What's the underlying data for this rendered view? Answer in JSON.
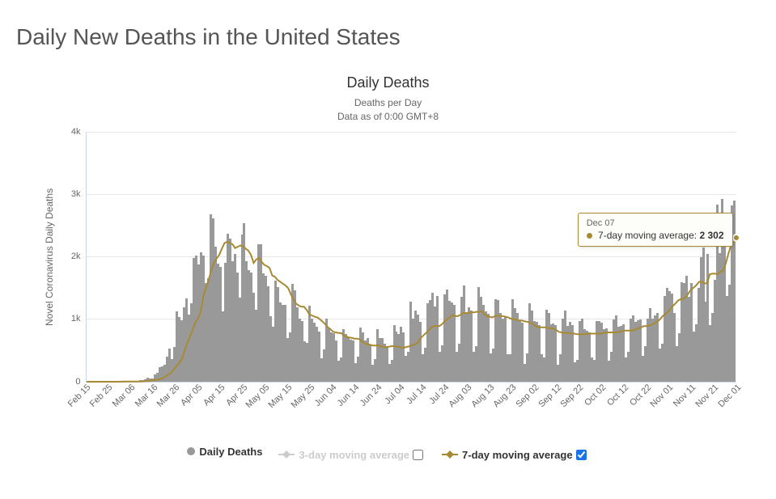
{
  "page": {
    "title": "Daily New Deaths in the United States"
  },
  "chart": {
    "type": "bar+line",
    "title": "Daily Deaths",
    "subtitle_line1": "Deaths per Day",
    "subtitle_line2": "Data as of 0:00 GMT+8",
    "y_axis": {
      "title": "Novel Coronavirus Daily Deaths",
      "min": 0,
      "max": 4000,
      "tick_step": 1000,
      "ticks": [
        {
          "v": 0,
          "label": "0"
        },
        {
          "v": 1000,
          "label": "1k"
        },
        {
          "v": 2000,
          "label": "2k"
        },
        {
          "v": 3000,
          "label": "3k"
        },
        {
          "v": 4000,
          "label": "4k"
        }
      ],
      "grid_color": "#e6e6e6"
    },
    "x_axis": {
      "tick_labels": [
        "Feb 15",
        "Feb 25",
        "Mar 06",
        "Mar 16",
        "Mar 26",
        "Apr 05",
        "Apr 15",
        "Apr 25",
        "May 05",
        "May 15",
        "May 25",
        "Jun 04",
        "Jun 14",
        "Jun 24",
        "Jul 04",
        "Jul 14",
        "Jul 24",
        "Aug 03",
        "Aug 13",
        "Aug 23",
        "Sep 02",
        "Sep 12",
        "Sep 22",
        "Oct 02",
        "Oct 12",
        "Oct 22",
        "Nov 01",
        "Nov 11",
        "Nov 21",
        "Dec 01"
      ]
    },
    "colors": {
      "bar": "#999999",
      "ma7": "#a88a33",
      "ma3": "#cccccc",
      "background": "#ffffff",
      "axis": "#ccd6eb",
      "grid": "#e6e6e6",
      "text": "#666666"
    },
    "line_width_ma7": 2,
    "bar_daily": [
      0,
      0,
      0,
      0,
      0,
      0,
      0,
      0,
      0,
      0,
      0,
      0,
      0,
      1,
      5,
      3,
      4,
      3,
      6,
      4,
      7,
      10,
      17,
      23,
      40,
      57,
      49,
      46,
      111,
      140,
      225,
      247,
      268,
      400,
      525,
      363,
      558,
      1118,
      1028,
      975,
      1180,
      1326,
      1066,
      1250,
      1970,
      2010,
      1870,
      2060,
      2010,
      1572,
      1650,
      2680,
      2610,
      2160,
      1890,
      1830,
      1120,
      1900,
      2360,
      2280,
      1930,
      2040,
      1740,
      1340,
      2350,
      2530,
      1930,
      1780,
      1740,
      1420,
      1150,
      2200,
      2200,
      1730,
      1690,
      1520,
      1040,
      870,
      1610,
      1510,
      1270,
      1220,
      1230,
      690,
      790,
      1560,
      1460,
      1190,
      1010,
      970,
      640,
      610,
      1210,
      1000,
      940,
      880,
      800,
      370,
      510,
      1000,
      860,
      790,
      770,
      650,
      330,
      380,
      830,
      760,
      710,
      670,
      650,
      290,
      390,
      860,
      790,
      660,
      700,
      580,
      270,
      360,
      830,
      700,
      690,
      600,
      560,
      280,
      350,
      900,
      800,
      760,
      870,
      790,
      410,
      480,
      1280,
      1000,
      1140,
      1070,
      950,
      430,
      540,
      1250,
      1300,
      1420,
      1200,
      1370,
      480,
      580,
      1390,
      1470,
      1290,
      1260,
      1220,
      480,
      600,
      1360,
      1530,
      1080,
      1180,
      1140,
      480,
      560,
      1510,
      1350,
      1220,
      1120,
      1080,
      450,
      530,
      1320,
      1300,
      1090,
      1000,
      1040,
      440,
      440,
      1320,
      1170,
      1100,
      970,
      940,
      280,
      450,
      1250,
      1140,
      960,
      950,
      900,
      430,
      380,
      1150,
      1090,
      920,
      930,
      900,
      270,
      440,
      1000,
      1140,
      890,
      950,
      900,
      300,
      350,
      960,
      1010,
      830,
      810,
      780,
      380,
      340,
      960,
      970,
      940,
      830,
      850,
      330,
      480,
      990,
      1060,
      870,
      890,
      910,
      380,
      480,
      1000,
      1050,
      950,
      980,
      990,
      410,
      560,
      1010,
      1170,
      1000,
      1060,
      1100,
      530,
      600,
      1370,
      1500,
      1450,
      1410,
      1100,
      570,
      770,
      1590,
      1580,
      1690,
      1350,
      1580,
      800,
      920,
      1500,
      1990,
      2140,
      1280,
      2040,
      900,
      1100,
      1620,
      2830,
      2050,
      2920,
      2590,
      1370,
      1550,
      2820,
      2890
    ],
    "ma7": [
      0,
      0,
      0,
      0,
      0,
      0,
      0,
      0,
      0,
      0,
      0,
      0,
      0,
      1,
      2,
      2,
      3,
      3,
      4,
      4,
      5,
      6,
      9,
      12,
      17,
      24,
      28,
      34,
      48,
      62,
      88,
      119,
      150,
      199,
      257,
      301,
      370,
      500,
      620,
      720,
      830,
      950,
      1010,
      1110,
      1360,
      1500,
      1630,
      1780,
      1900,
      1970,
      2030,
      2130,
      2220,
      2240,
      2220,
      2200,
      2140,
      2160,
      2180,
      2170,
      2130,
      2100,
      2030,
      1900,
      1960,
      1980,
      1920,
      1870,
      1850,
      1820,
      1700,
      1680,
      1630,
      1600,
      1570,
      1540,
      1500,
      1400,
      1320,
      1250,
      1220,
      1200,
      1200,
      1150,
      1080,
      1060,
      1040,
      1030,
      1000,
      960,
      920,
      870,
      840,
      800,
      790,
      780,
      780,
      740,
      720,
      710,
      700,
      690,
      690,
      680,
      640,
      610,
      600,
      590,
      580,
      580,
      590,
      560,
      560,
      550,
      560,
      570,
      570,
      560,
      560,
      540,
      550,
      560,
      570,
      590,
      600,
      630,
      700,
      740,
      780,
      820,
      870,
      890,
      890,
      890,
      920,
      970,
      1000,
      1030,
      1070,
      1050,
      1050,
      1070,
      1100,
      1100,
      1100,
      1110,
      1110,
      1120,
      1120,
      1130,
      1080,
      1050,
      1040,
      1030,
      1050,
      1060,
      1050,
      1050,
      1040,
      1030,
      1010,
      1000,
      990,
      980,
      980,
      970,
      960,
      950,
      930,
      900,
      880,
      870,
      870,
      870,
      860,
      860,
      850,
      830,
      800,
      790,
      780,
      780,
      780,
      770,
      770,
      760,
      760,
      760,
      760,
      770,
      770,
      770,
      770,
      770,
      770,
      780,
      790,
      790,
      790,
      790,
      790,
      800,
      810,
      820,
      820,
      820,
      820,
      840,
      850,
      870,
      890,
      890,
      900,
      910,
      930,
      960,
      990,
      1040,
      1080,
      1110,
      1160,
      1210,
      1250,
      1300,
      1320,
      1330,
      1350,
      1420,
      1480,
      1510,
      1550,
      1600,
      1600,
      1570,
      1580,
      1720,
      1730,
      1730,
      1720,
      1760,
      1780,
      1890,
      2050,
      2180,
      2220,
      2302
    ],
    "tooltip": {
      "date": "Dec 07",
      "series_label": "7-day moving average:",
      "value": "2 302",
      "dot_color": "#a88a33"
    },
    "hover_point": {
      "index_from_end": 0
    }
  },
  "legend": {
    "items": [
      {
        "key": "daily",
        "label": "Daily Deaths",
        "swatch": "circle",
        "color": "#999999",
        "enabled": true,
        "has_checkbox": false
      },
      {
        "key": "ma3",
        "label": "3-day moving average",
        "swatch": "line",
        "color": "#cccccc",
        "enabled": false,
        "has_checkbox": true,
        "checked": false
      },
      {
        "key": "ma7",
        "label": "7-day moving average",
        "swatch": "line",
        "color": "#a88a33",
        "enabled": true,
        "has_checkbox": true,
        "checked": true
      }
    ]
  }
}
